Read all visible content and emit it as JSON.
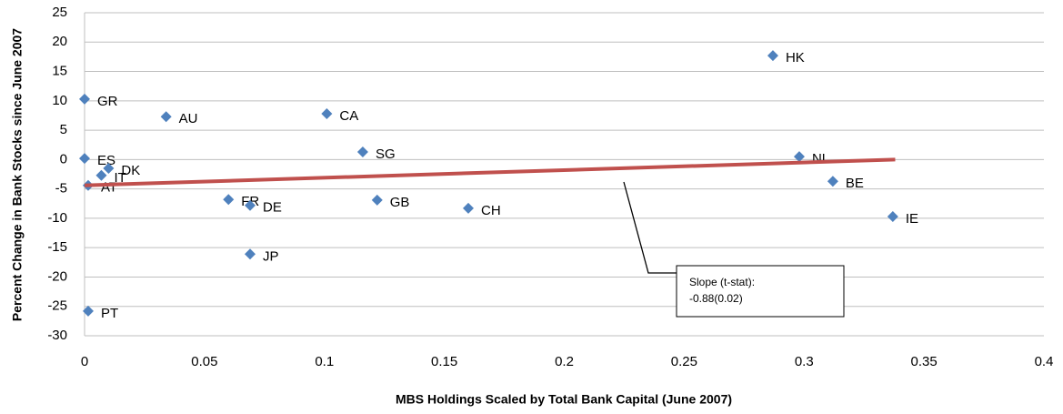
{
  "chart_data": {
    "type": "scatter",
    "x_label": "MBS Holdings Scaled by Total Bank Capital (June 2007)",
    "y_label": "Percent Change in Bank Stocks since June 2007",
    "labels": [
      "GR",
      "ES",
      "IT",
      "DK",
      "AT",
      "PT",
      "AU",
      "CA",
      "SG",
      "FR",
      "DE",
      "JP",
      "GB",
      "CH",
      "HK",
      "NL",
      "BE",
      "IE"
    ],
    "x": [
      0,
      0,
      0.007,
      0.01,
      0.0015,
      0.0015,
      0.034,
      0.101,
      0.116,
      0.06,
      0.069,
      0.069,
      0.122,
      0.16,
      0.287,
      0.298,
      0.312,
      0.337
    ],
    "values": [
      10.3,
      0.2,
      -2.7,
      -1.5,
      -4.4,
      -25.8,
      7.3,
      7.8,
      1.3,
      -6.8,
      -7.8,
      -16.1,
      -6.9,
      -8.3,
      17.7,
      0.5,
      -3.7,
      -9.7
    ],
    "color": "#4f81bd",
    "trendline": {
      "x": [
        0,
        0.338
      ],
      "values": [
        -4.4,
        0
      ],
      "color": "#c0504d"
    },
    "annotation": [
      "Slope (t-stat):",
      "-0.88(0.02)"
    ],
    "xlim": [
      0,
      0.4
    ],
    "xticks": [
      0,
      0.05,
      0.1,
      0.15,
      0.2,
      0.25,
      0.3,
      0.35,
      0.4
    ],
    "ylim": [
      -30,
      25
    ],
    "yticks": [
      -30,
      -25,
      -20,
      -15,
      -10,
      -5,
      0,
      5,
      10,
      15,
      20,
      25
    ],
    "grid": true
  }
}
